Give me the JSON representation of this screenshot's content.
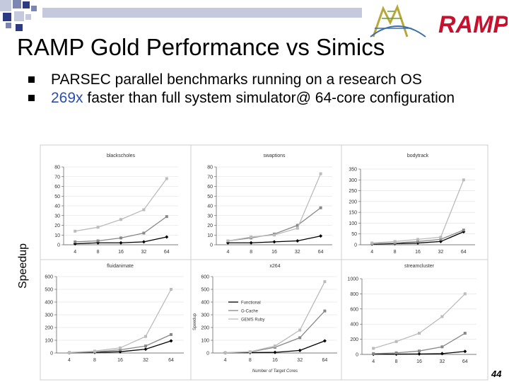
{
  "slide": {
    "title": "RAMP Gold Performance vs Simics",
    "bullets": [
      {
        "text": "PARSEC parallel benchmarks running on a research OS",
        "highlight": ""
      },
      {
        "text": " faster than full system simulator@ 64-core configuration",
        "highlight": "269x"
      }
    ],
    "side_ylabel": "Speedup",
    "page_number": "44",
    "logo_text": "RAMP"
  },
  "colors": {
    "functional": "#000000",
    "gcache": "#888888",
    "gems": "#bbbbbb",
    "topbar": "#c4c9dd",
    "logo_red": "#c8102e"
  },
  "chart_data": [
    {
      "type": "line",
      "title": "blackscholes",
      "categories": [
        "4",
        "8",
        "16",
        "32",
        "64"
      ],
      "ylim": [
        0,
        80
      ],
      "yticks": [
        0,
        10,
        20,
        30,
        40,
        50,
        60,
        70,
        80
      ],
      "series": [
        {
          "key": "functional",
          "values": [
            1,
            2,
            2,
            3,
            8
          ]
        },
        {
          "key": "gcache",
          "values": [
            3,
            4,
            7,
            12,
            29
          ]
        },
        {
          "key": "gems",
          "values": [
            14,
            18,
            26,
            36,
            68
          ]
        }
      ]
    },
    {
      "type": "line",
      "title": "swaptions",
      "categories": [
        "4",
        "8",
        "16",
        "32",
        "64"
      ],
      "ylim": [
        0,
        80
      ],
      "yticks": [
        0,
        10,
        20,
        30,
        40,
        50,
        60,
        70,
        80
      ],
      "series": [
        {
          "key": "functional",
          "values": [
            2,
            2,
            3,
            4,
            9
          ]
        },
        {
          "key": "gcache",
          "values": [
            4,
            7,
            11,
            20,
            38
          ]
        },
        {
          "key": "gems",
          "values": [
            4,
            8,
            10,
            17,
            73
          ]
        }
      ]
    },
    {
      "type": "line",
      "title": "bodytrack",
      "categories": [
        "4",
        "8",
        "16",
        "32",
        "64"
      ],
      "ylim": [
        0,
        350
      ],
      "yticks": [
        0,
        50,
        100,
        150,
        200,
        250,
        300,
        350
      ],
      "series": [
        {
          "key": "functional",
          "values": [
            3,
            5,
            8,
            15,
            60
          ]
        },
        {
          "key": "gcache",
          "values": [
            5,
            8,
            15,
            25,
            68
          ]
        },
        {
          "key": "gems",
          "values": [
            8,
            15,
            25,
            35,
            300
          ]
        }
      ]
    },
    {
      "type": "line",
      "title": "fluidanimate",
      "categories": [
        "4",
        "8",
        "16",
        "32",
        "64"
      ],
      "ylim": [
        0,
        600
      ],
      "yticks": [
        0,
        100,
        200,
        300,
        400,
        500,
        600
      ],
      "series": [
        {
          "key": "functional",
          "values": [
            2,
            4,
            10,
            30,
            95
          ]
        },
        {
          "key": "gcache",
          "values": [
            3,
            8,
            25,
            55,
            145
          ]
        },
        {
          "key": "gems",
          "values": [
            4,
            15,
            40,
            130,
            500
          ]
        }
      ]
    },
    {
      "type": "line",
      "title": "x264",
      "categories": [
        "4",
        "8",
        "16",
        "32",
        "64"
      ],
      "ylim": [
        0,
        600
      ],
      "yticks": [
        0,
        100,
        200,
        300,
        400,
        500,
        600
      ],
      "ylabel": "Speedup",
      "xlabel": "Number of Target Cores",
      "legend": [
        "Functional",
        "G-Cache",
        "GEMS Ruby"
      ],
      "series": [
        {
          "key": "functional",
          "values": [
            2,
            3,
            5,
            20,
            95
          ]
        },
        {
          "key": "gcache",
          "values": [
            2,
            8,
            45,
            120,
            330
          ]
        },
        {
          "key": "gems",
          "values": [
            3,
            10,
            55,
            180,
            560
          ]
        }
      ]
    },
    {
      "type": "line",
      "title": "streamcluster",
      "categories": [
        "4",
        "8",
        "16",
        "32",
        "64"
      ],
      "ylim": [
        0,
        1000
      ],
      "yticks": [
        0,
        200,
        400,
        600,
        800,
        1000
      ],
      "series": [
        {
          "key": "functional",
          "values": [
            2,
            4,
            6,
            10,
            40
          ]
        },
        {
          "key": "gcache",
          "values": [
            10,
            20,
            45,
            100,
            280
          ]
        },
        {
          "key": "gems",
          "values": [
            80,
            170,
            280,
            500,
            800
          ]
        }
      ]
    }
  ]
}
